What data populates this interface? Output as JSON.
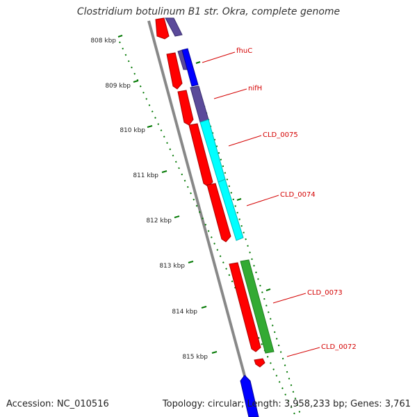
{
  "title": "Clostridium botulinum B1 str. Okra, complete genome",
  "footer": {
    "accession": "Accession: NC_010516",
    "summary": "Topology: circular; Length: 3,958,233 bp; Genes: 3,761"
  },
  "ticks": [
    {
      "label": "808 kbp"
    },
    {
      "label": "809 kbp"
    },
    {
      "label": "810 kbp"
    },
    {
      "label": "811 kbp"
    },
    {
      "label": "812 kbp"
    },
    {
      "label": "813 kbp"
    },
    {
      "label": "814 kbp"
    },
    {
      "label": "815 kbp"
    }
  ],
  "gene_labels": [
    "fhuC",
    "nifH",
    "CLD_0075",
    "CLD_0074",
    "CLD_0073",
    "CLD_0072"
  ],
  "colors": {
    "cds": "#ff0000",
    "purple": "#5b4a9a",
    "blue": "#0000ff",
    "cyan": "#00ffff",
    "green": "#33aa33",
    "backbone": "#888888",
    "tick": "#007700",
    "label": "#d40000"
  }
}
